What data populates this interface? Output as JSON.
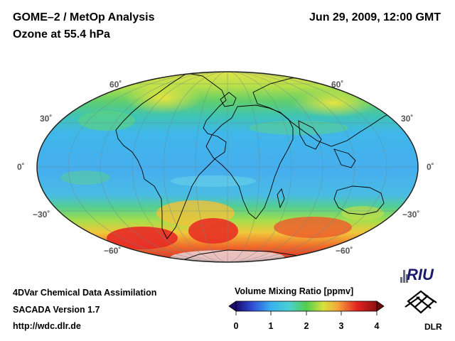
{
  "header": {
    "product": "GOME–2 / MetOp Analysis",
    "field": "Ozone at 55.4 hPa",
    "datetime": "Jun 29, 2009, 12:00 GMT"
  },
  "map": {
    "projection": "Mollweide",
    "lat_labels": [
      "60˚",
      "30˚",
      "0˚",
      "−30˚",
      "−60˚"
    ],
    "colors": {
      "low": "#3fb5ea",
      "mid": "#50d060",
      "high": "#f2e83a",
      "max": "#e82020",
      "coast": "#000000"
    }
  },
  "colorbar": {
    "title": "Volume Mixing Ratio [ppmv]",
    "ticks": [
      "0",
      "1",
      "2",
      "3",
      "4"
    ]
  },
  "footer": {
    "line1": "4DVar Chemical Data Assimilation",
    "line2": "SACADA Version 1.7",
    "url": "http://wdc.dlr.de"
  },
  "logos": {
    "riu": "RIU",
    "dlr": "DLR"
  }
}
